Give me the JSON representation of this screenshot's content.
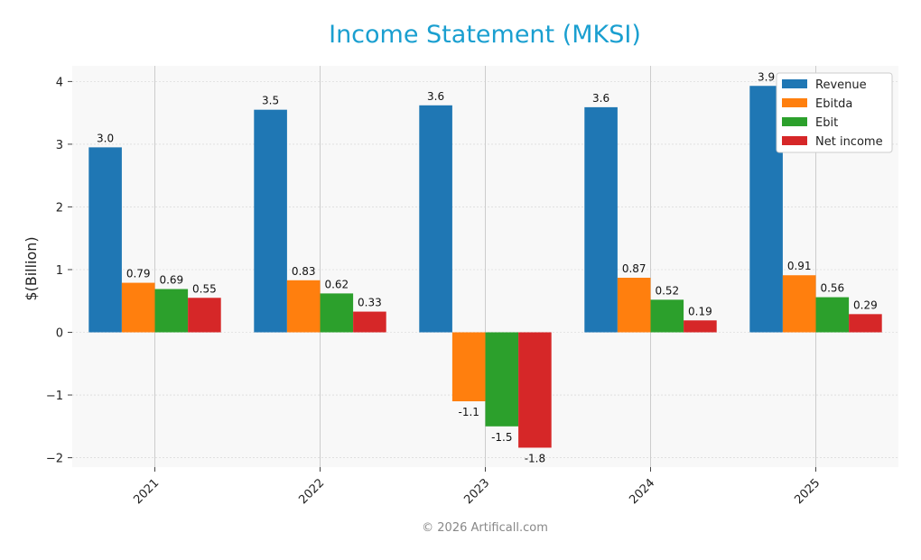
{
  "chart_data": {
    "type": "bar",
    "title": "Income Statement (MKSI)",
    "xlabel": "",
    "ylabel": "$(Billion)",
    "categories": [
      "2021",
      "2022",
      "2023",
      "2024",
      "2025"
    ],
    "series": [
      {
        "name": "Revenue",
        "color": "#1f77b4",
        "values": [
          2.95,
          3.55,
          3.62,
          3.59,
          3.93
        ],
        "labels": [
          "3.0",
          "3.5",
          "3.6",
          "3.6",
          "3.9"
        ]
      },
      {
        "name": "Ebitda",
        "color": "#ff7f0e",
        "values": [
          0.79,
          0.83,
          -1.1,
          0.87,
          0.91
        ],
        "labels": [
          "0.79",
          "0.83",
          "-1.1",
          "0.87",
          "0.91"
        ]
      },
      {
        "name": "Ebit",
        "color": "#2ca02c",
        "values": [
          0.69,
          0.62,
          -1.5,
          0.52,
          0.56
        ],
        "labels": [
          "0.69",
          "0.62",
          "-1.5",
          "0.52",
          "0.56"
        ]
      },
      {
        "name": "Net income",
        "color": "#d62728",
        "values": [
          0.55,
          0.33,
          -1.84,
          0.19,
          0.29
        ],
        "labels": [
          "0.55",
          "0.33",
          "-1.8",
          "0.19",
          "0.29"
        ]
      }
    ],
    "ylim": [
      -2.15,
      4.25
    ],
    "yticks": [
      -2,
      -1,
      0,
      1,
      2,
      3,
      4
    ],
    "ytick_labels": [
      "−2",
      "−1",
      "0",
      "1",
      "2",
      "3",
      "4"
    ],
    "grid": true,
    "legend_position": "top-right"
  },
  "footer": {
    "copyright": "© 2026 Artificall.com"
  },
  "colors": {
    "title": "#1a9fd0",
    "footer": "#888888",
    "plot_bg": "#f8f8f8"
  }
}
